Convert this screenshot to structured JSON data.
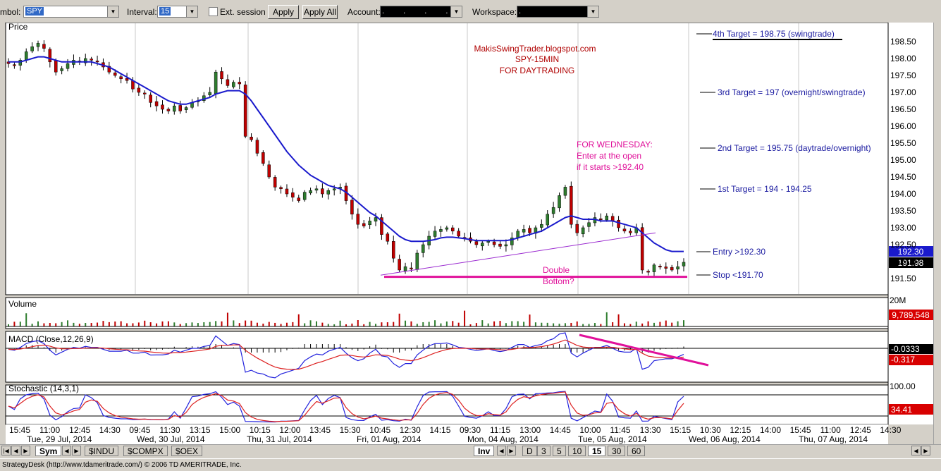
{
  "toolbar": {
    "symbol_label": "mbol:",
    "symbol_value": "SPY",
    "interval_label": "Interval:",
    "interval_value": "15",
    "ext_session_label": "Ext. session",
    "apply_label": "Apply",
    "apply_all_label": "Apply All",
    "account_label": "Account:",
    "account_value": ". . . .",
    "workspace_label": "Workspace:",
    "workspace_value": "."
  },
  "panes": {
    "price_title": "Price",
    "volume_title": "Volume",
    "macd_title": "MACD (Close,12,26,9)",
    "stoch_title": "Stochastic (14,3,1)"
  },
  "annotations": {
    "blog": "MakisSwingTrader.blogspot.com",
    "symbol_interval": "SPY-15MIN",
    "purpose": "FOR DAYTRADING",
    "wed_line1": "FOR WEDNESDAY:",
    "wed_line2": "Enter at the open",
    "wed_line3": "if it starts >192.40",
    "double1": "Double",
    "double2": "Bottom?",
    "target4": "4th Target = 198.75 (swingtrade)",
    "target3": "3rd Target = 197 (overnight/swingtrade)",
    "target2": "2nd Target = 195.75 (daytrade/overnight)",
    "target1": "1st Target = 194 - 194.25",
    "entry": "Entry >192.30",
    "stop": "Stop <191.70"
  },
  "readouts": {
    "price_blue": "192.30",
    "price_black": "191.98",
    "volume_top": "20M",
    "volume_last": "9,789,548",
    "macd_a": "-0.0333",
    "macd_b": "-0.317",
    "stoch_top": "100.00",
    "stoch_last": "34.41"
  },
  "time_axis": {
    "times": [
      "15:45",
      "11:00",
      "12:45",
      "14:30",
      "09:45",
      "11:30",
      "13:15",
      "15:00",
      "10:15",
      "12:00",
      "13:45",
      "15:30",
      "10:45",
      "12:30",
      "14:15",
      "09:30",
      "11:15",
      "13:00",
      "14:45",
      "10:00",
      "11:45",
      "13:30",
      "15:15",
      "10:30",
      "12:15",
      "14:00",
      "15:45",
      "11:00",
      "12:45",
      "14:30"
    ],
    "dates": [
      "Tue, 29 Jul, 2014",
      "Wed, 30 Jul, 2014",
      "Thu, 31 Jul, 2014",
      "Fri, 01 Aug, 2014",
      "Mon, 04 Aug, 2014",
      "Tue, 05 Aug, 2014",
      "Wed, 06 Aug, 2014",
      "Thu, 07 Aug, 2014"
    ]
  },
  "bottom_tabs": {
    "sym": "Sym",
    "symbols": [
      "$INDU",
      "$COMPX",
      "$OEX"
    ],
    "inv": "Inv",
    "periods": [
      "D",
      "3",
      "5",
      "10",
      "15",
      "30",
      "60"
    ]
  },
  "status": "StrategyDesk (http://www.tdameritrade.com/) © 2006 TD AMERITRADE, Inc.",
  "colors": {
    "candle_up": "#2e7d2e",
    "candle_down": "#c00000",
    "ma": "#1a1acc",
    "annotation_red": "#b00000",
    "annotation_pink": "#e0109a",
    "target_blue": "#1a1aa0"
  },
  "chart_data": {
    "type": "candlestick",
    "y_ticks": [
      198.5,
      198.0,
      197.5,
      197.0,
      196.5,
      196.0,
      195.5,
      195.0,
      194.5,
      194.0,
      193.5,
      193.0,
      192.5,
      192.0,
      191.5
    ],
    "ylim": [
      191.3,
      198.8
    ],
    "close_approx": [
      197.85,
      197.8,
      197.95,
      198.2,
      198.35,
      198.45,
      198.3,
      197.9,
      197.6,
      197.7,
      197.85,
      197.95,
      197.9,
      198.0,
      197.95,
      197.9,
      197.75,
      197.6,
      197.5,
      197.4,
      197.35,
      197.1,
      197.0,
      196.95,
      196.7,
      196.6,
      196.5,
      196.45,
      196.6,
      196.45,
      196.55,
      196.7,
      196.75,
      196.9,
      197.0,
      197.6,
      197.4,
      197.2,
      197.3,
      197.25,
      195.7,
      195.6,
      195.2,
      194.9,
      194.5,
      194.2,
      194.15,
      194.0,
      193.9,
      193.8,
      194.05,
      194.1,
      194.15,
      194.0,
      194.1,
      194.15,
      194.2,
      193.8,
      193.4,
      193.1,
      193.05,
      193.2,
      193.3,
      192.8,
      192.6,
      192.1,
      191.75,
      191.85,
      191.8,
      192.25,
      192.5,
      192.75,
      192.9,
      192.95,
      193.0,
      192.9,
      192.75,
      192.7,
      192.6,
      192.5,
      192.55,
      192.6,
      192.5,
      192.45,
      192.5,
      192.7,
      192.9,
      192.95,
      192.85,
      193.0,
      193.1,
      193.4,
      193.6,
      193.95,
      194.2,
      193.1,
      192.85,
      193.0,
      193.15,
      193.3,
      193.25,
      193.35,
      193.2,
      193.0,
      192.9,
      192.85,
      193.0,
      191.75,
      191.7,
      191.9,
      191.85,
      191.8,
      191.75,
      191.85,
      191.98
    ],
    "ma_approx": [
      197.9,
      197.9,
      197.9,
      197.95,
      198.0,
      198.05,
      198.05,
      198.0,
      197.95,
      197.9,
      197.9,
      197.9,
      197.9,
      197.9,
      197.9,
      197.85,
      197.8,
      197.75,
      197.65,
      197.55,
      197.45,
      197.35,
      197.25,
      197.15,
      197.05,
      196.95,
      196.85,
      196.75,
      196.7,
      196.65,
      196.65,
      196.7,
      196.75,
      196.8,
      196.85,
      196.95,
      197.0,
      197.05,
      197.05,
      197.05,
      196.95,
      196.75,
      196.5,
      196.25,
      196.0,
      195.75,
      195.5,
      195.25,
      195.05,
      194.85,
      194.7,
      194.55,
      194.45,
      194.35,
      194.25,
      194.2,
      194.15,
      194.05,
      193.9,
      193.75,
      193.6,
      193.45,
      193.35,
      193.2,
      193.05,
      192.9,
      192.75,
      192.65,
      192.6,
      192.6,
      192.6,
      192.62,
      192.65,
      192.7,
      192.72,
      192.72,
      192.7,
      192.68,
      192.65,
      192.62,
      192.62,
      192.62,
      192.62,
      192.62,
      192.62,
      192.65,
      192.7,
      192.75,
      192.8,
      192.85,
      192.9,
      193.0,
      193.1,
      193.2,
      193.3,
      193.35,
      193.3,
      193.25,
      193.25,
      193.25,
      193.2,
      193.2,
      193.2,
      193.15,
      193.1,
      193.05,
      193.0,
      192.85,
      192.7,
      192.55,
      192.45,
      192.35,
      192.3,
      192.3,
      192.3
    ],
    "horizontal_levels": [
      {
        "name": "Double Bottom",
        "value": 191.55
      }
    ],
    "trendline": {
      "from": 191.6,
      "to": 192.85
    }
  }
}
